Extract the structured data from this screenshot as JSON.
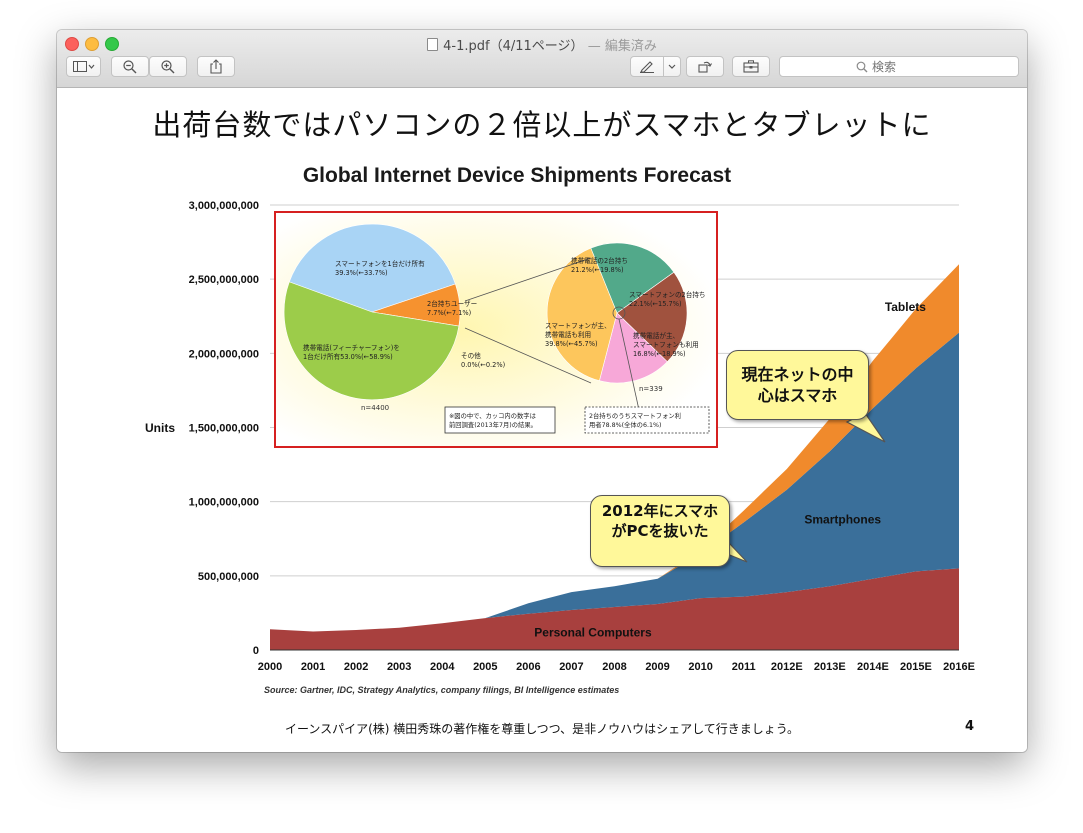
{
  "window": {
    "filename": "4-1.pdf（4/11ページ）",
    "edited": "— 編集済み",
    "search_placeholder": "検索"
  },
  "slide": {
    "title": "出荷台数ではパソコンの２倍以上がスマホとタブレットに",
    "footer": "イーンスパイア(株) 横田秀珠の著作権を尊重しつつ、是非ノウハウはシェアして行きましょう。",
    "page_number": "4",
    "source": "Source: Gartner, IDC, Strategy Analytics, company filings, BI Intelligence estimates",
    "callout_top": "現在ネットの中心はスマホ",
    "callout_bottom": "2012年にスマホがPCを抜いた"
  },
  "inset": {
    "left_pie": {
      "n": "n=4400",
      "slices": [
        {
          "label": "スマートフォンを1台だけ所有",
          "value": "39.3%(←33.7%)",
          "pct": 39.3,
          "color": "#a9d4f5"
        },
        {
          "label": "2台持ちユーザー",
          "value": "7.7%(←7.1%)",
          "pct": 7.7,
          "color": "#f6922f"
        },
        {
          "label": "その他",
          "value": "0.0%(←0.2%)",
          "pct": 0.0,
          "color": "#dddddd"
        },
        {
          "label": "携帯電話(フィーチャーフォン)を1台だけ所有",
          "value": "53.0%(←58.9%)",
          "pct": 53.0,
          "color": "#9ccc4a"
        }
      ]
    },
    "right_pie": {
      "n": "n=339",
      "slices": [
        {
          "label": "携帯電話の2台持ち",
          "value": "21.2%(←19.8%)",
          "pct": 21.2,
          "color": "#52a98a"
        },
        {
          "label": "スマートフォンの2台持ち",
          "value": "22.1%(←15.7%)",
          "pct": 22.1,
          "color": "#a0523e"
        },
        {
          "label": "携帯電話が主、スマートフォンも利用",
          "value": "16.8%(←18.9%)",
          "pct": 16.8,
          "color": "#f7a8d8"
        },
        {
          "label": "スマートフォンが主、携帯電話も利用",
          "value": "39.8%(←45.7%)",
          "pct": 39.8,
          "color": "#fdc65c"
        }
      ]
    },
    "note_left": "※図の中で、カッコ内の数字は前回調査(2013年7月)の結果。",
    "note_right": "2台持ちのうちスマートフォン利用者78.8%(全体の6.1%)"
  },
  "chart_data": {
    "type": "area",
    "title": "Global Internet Device Shipments Forecast",
    "ylabel": "Units",
    "xlabel": "",
    "categories": [
      "2000",
      "2001",
      "2002",
      "2003",
      "2004",
      "2005",
      "2006",
      "2007",
      "2008",
      "2009",
      "2010",
      "2011",
      "2012E",
      "2013E",
      "2014E",
      "2015E",
      "2016E"
    ],
    "ylim": [
      0,
      3000000000
    ],
    "yticks": [
      "0",
      "500,000,000",
      "1,000,000,000",
      "1,500,000,000",
      "2,000,000,000",
      "2,500,000,000",
      "3,000,000,000"
    ],
    "grid": true,
    "stacked": true,
    "series": [
      {
        "name": "Personal Computers",
        "color": "#a8403e",
        "values": [
          140000000,
          125000000,
          135000000,
          150000000,
          180000000,
          215000000,
          245000000,
          270000000,
          290000000,
          310000000,
          350000000,
          360000000,
          390000000,
          430000000,
          480000000,
          530000000,
          550000000
        ]
      },
      {
        "name": "Smartphones",
        "color": "#3a6f9a",
        "values": [
          0,
          0,
          0,
          0,
          0,
          0,
          70000000,
          120000000,
          140000000,
          170000000,
          300000000,
          500000000,
          690000000,
          910000000,
          1150000000,
          1370000000,
          1590000000
        ]
      },
      {
        "name": "Tablets",
        "color": "#f08a2c",
        "values": [
          0,
          0,
          0,
          0,
          0,
          0,
          0,
          0,
          0,
          0,
          20000000,
          80000000,
          140000000,
          220000000,
          320000000,
          400000000,
          460000000
        ]
      }
    ]
  }
}
